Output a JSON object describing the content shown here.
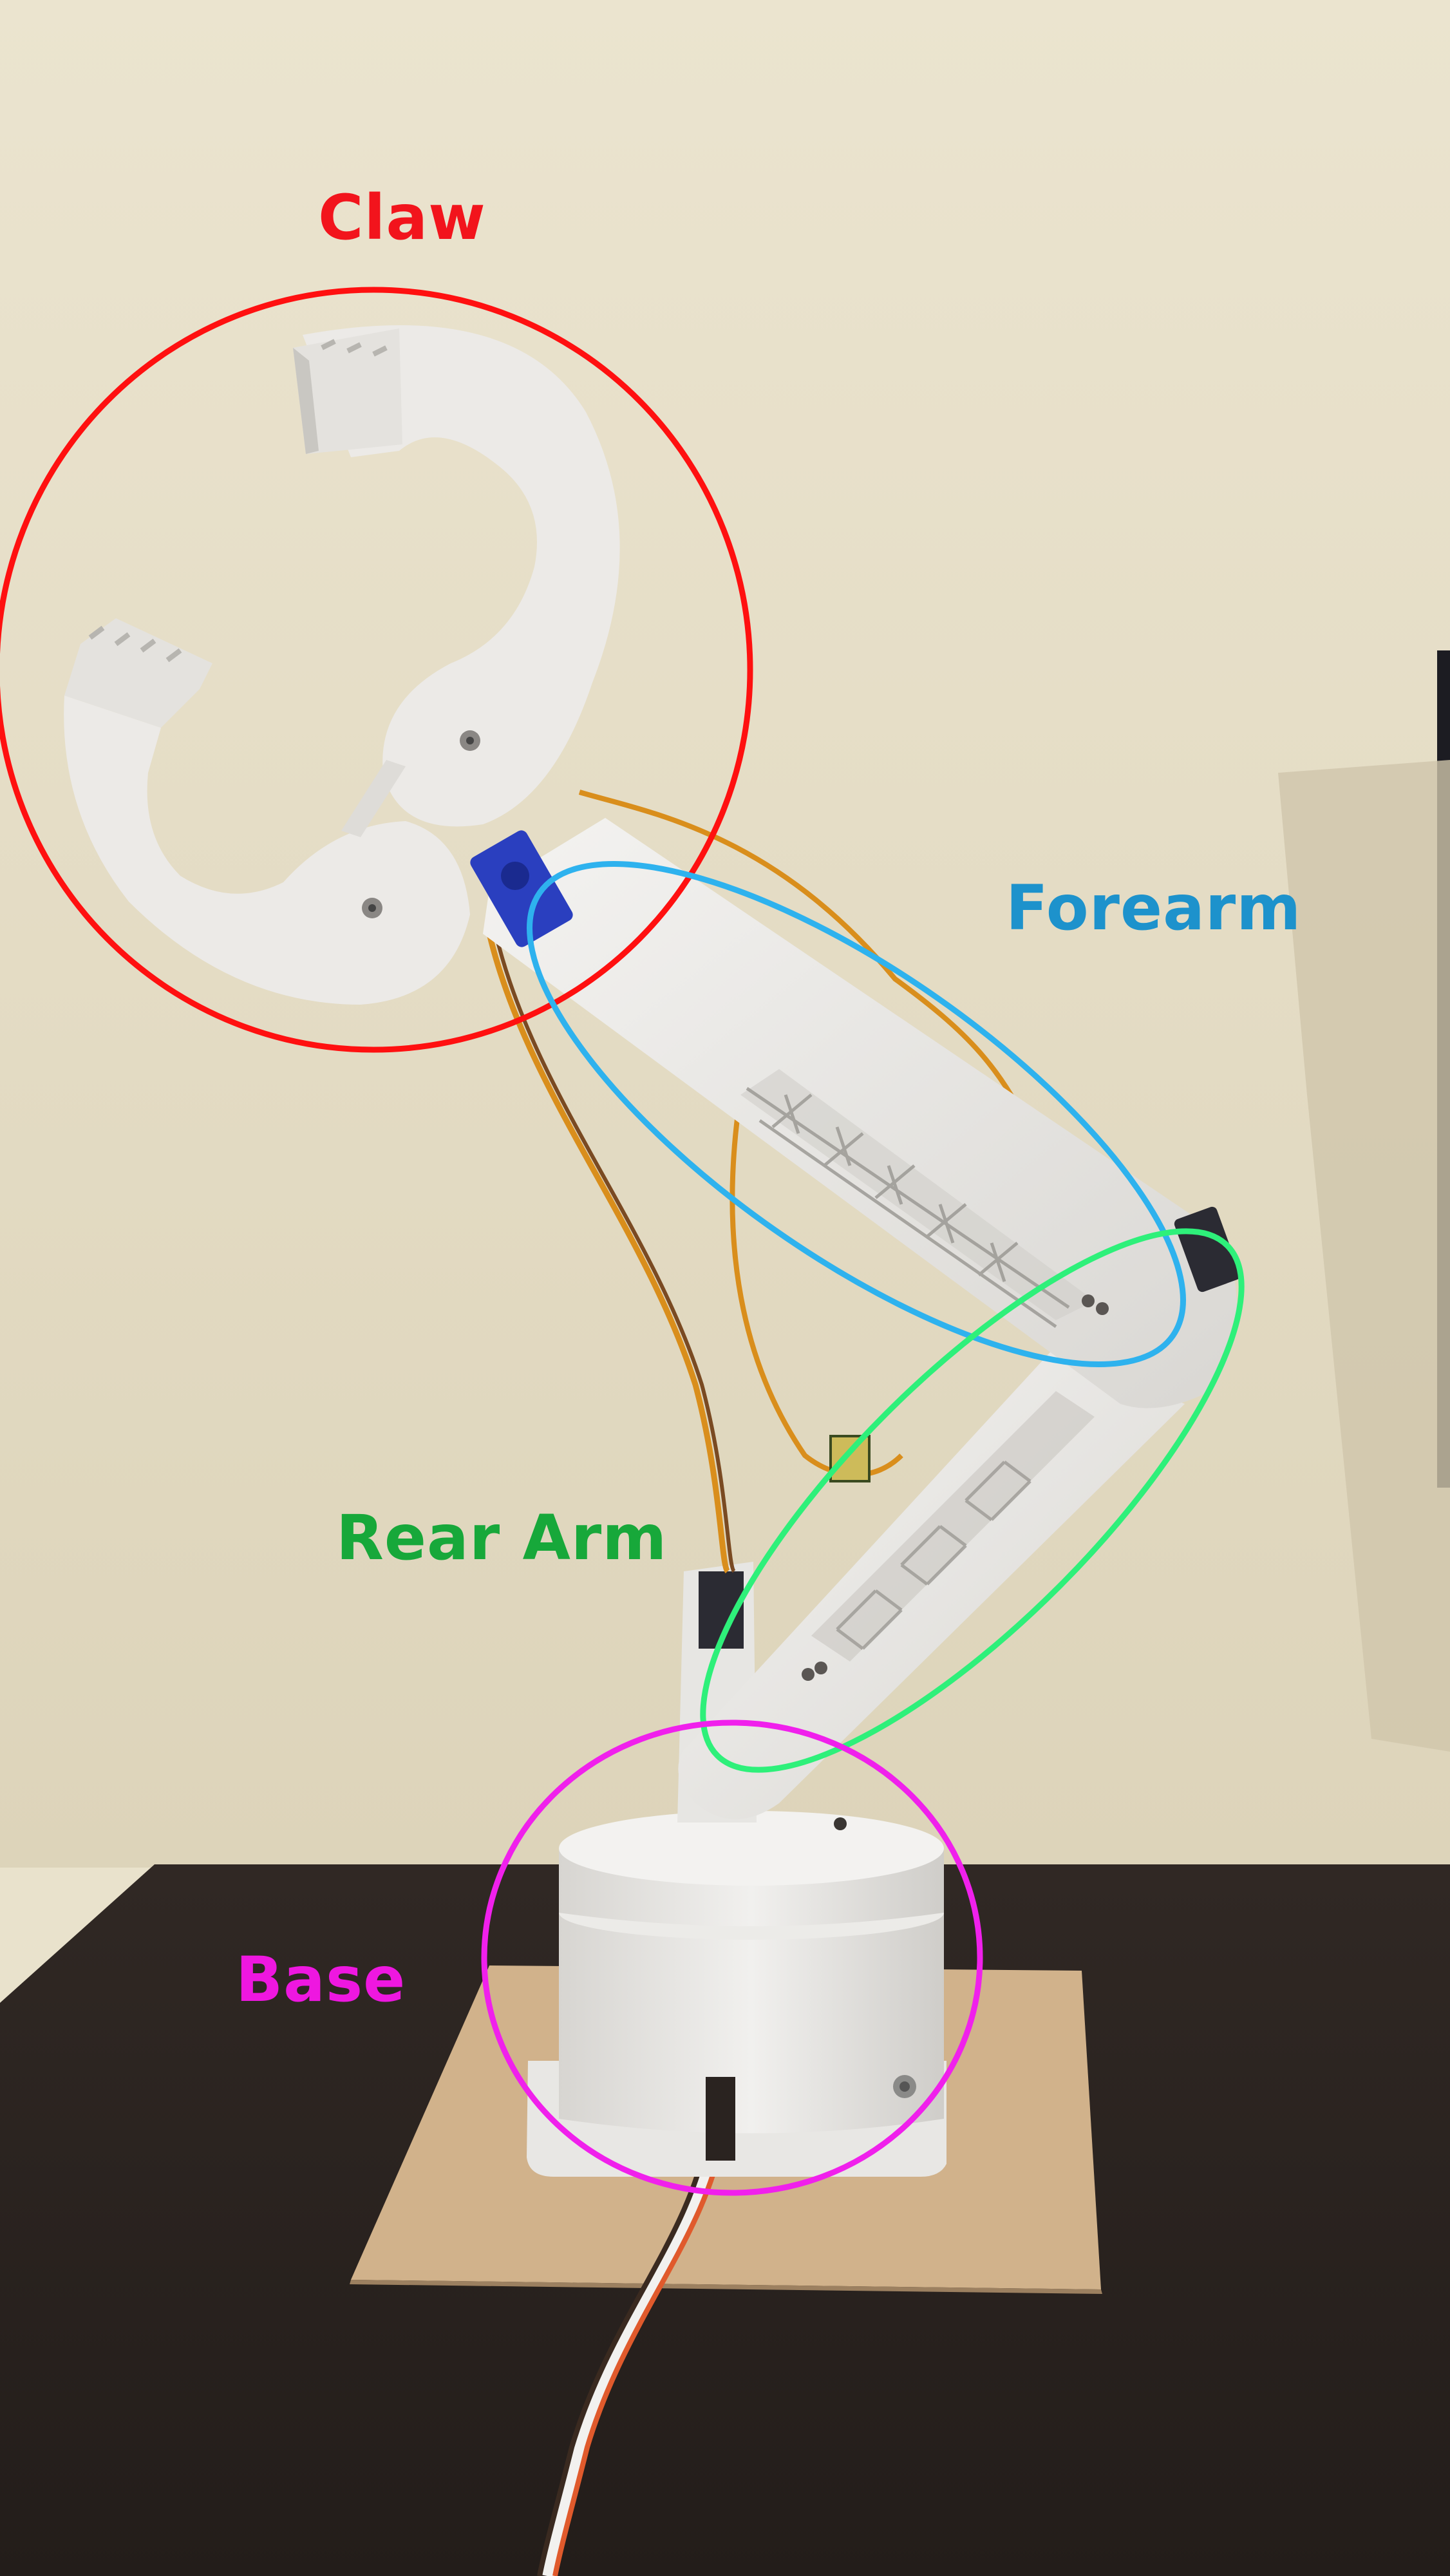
{
  "labels": {
    "claw": {
      "text": "Claw",
      "color": "#f2141c"
    },
    "forearm": {
      "text": "Forearm",
      "color": "#1d92cc"
    },
    "rear_arm": {
      "text": "Rear Arm",
      "color": "#17a83a"
    },
    "base": {
      "text": "Base",
      "color": "#ee17e0"
    }
  },
  "outline_colors": {
    "claw": "#ff1010",
    "forearm": "#2eb2ee",
    "rear_arm": "#2ef07a",
    "base": "#f020ec"
  },
  "palette": {
    "wall": "#e9e2cc",
    "table": "#2a2320",
    "board": "#d3b48e",
    "plastic": "#efeeeb",
    "plastic_shade": "#d4d2cd",
    "servo_blue": "#2a3fbf",
    "wire_orange": "#d98e1c",
    "wire_brown": "#7a4a22"
  }
}
